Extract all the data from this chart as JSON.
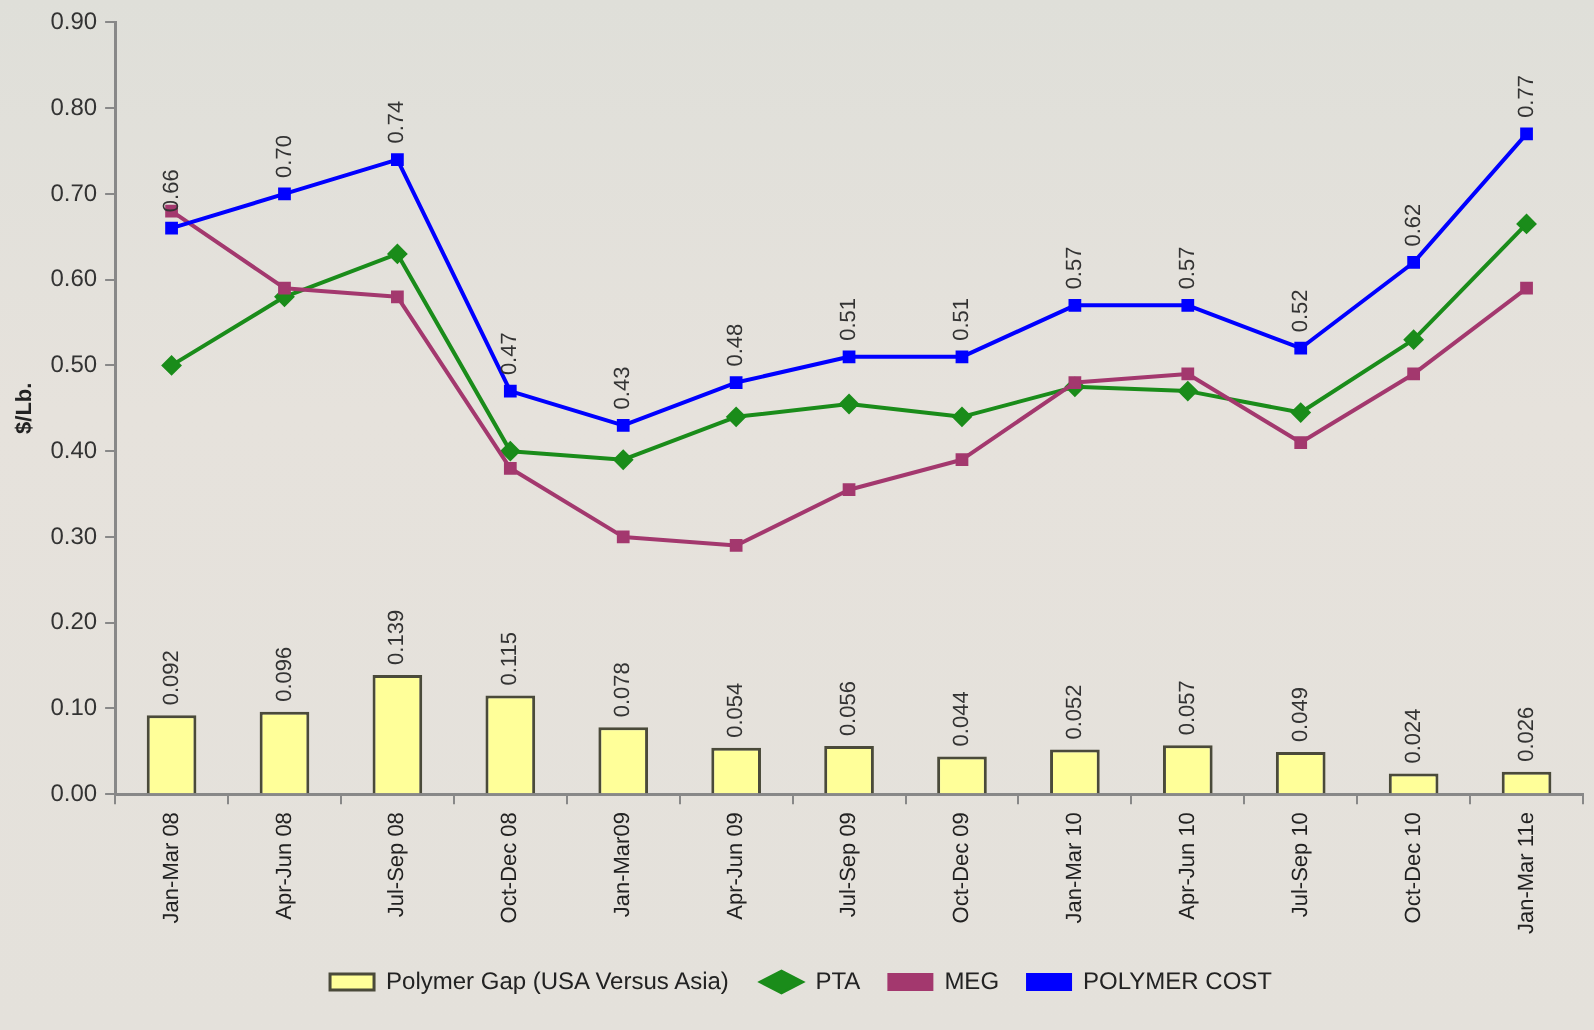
{
  "chart_data": {
    "type": "bar",
    "ylabel": "$/Lb.",
    "categories": [
      "Jan-Mar 08",
      "Apr-Jun 08",
      "Jul-Sep 08",
      "Oct-Dec 08",
      "Jan-Mar09",
      "Apr-Jun 09",
      "Jul-Sep 09",
      "Oct-Dec 09",
      "Jan-Mar 10",
      "Apr-Jun 10",
      "Jul-Sep 10",
      "Oct-Dec 10",
      "Jan-Mar 11e"
    ],
    "ylim": [
      0,
      0.9
    ],
    "yticks": [
      {
        "value": 0,
        "label": "0.00"
      },
      {
        "value": 0.1,
        "label": "0.10"
      },
      {
        "value": 0.2,
        "label": "0.20"
      },
      {
        "value": 0.3,
        "label": "0.30"
      },
      {
        "value": 0.4,
        "label": "0.40"
      },
      {
        "value": 0.5,
        "label": "0.50"
      },
      {
        "value": 0.6,
        "label": "0.60"
      },
      {
        "value": 0.7,
        "label": "0.70"
      },
      {
        "value": 0.8,
        "label": "0.80"
      },
      {
        "value": 0.9,
        "label": "0.90"
      }
    ],
    "grid": false,
    "legend": "bottom",
    "series": [
      {
        "name": "Polymer Gap (USA Versus Asia)",
        "color": "#ffff99",
        "values": [
          0.092,
          0.096,
          0.139,
          0.115,
          0.078,
          0.054,
          0.056,
          0.044,
          0.052,
          0.057,
          0.049,
          0.024,
          0.026
        ],
        "value_labels": [
          "0.092",
          "0.096",
          "0.139",
          "0.115",
          "0.078",
          "0.054",
          "0.056",
          "0.044",
          "0.052",
          "0.057",
          "0.049",
          "0.024",
          "0.026"
        ]
      },
      {
        "name": "PTA",
        "type": "line",
        "color": "#1a8c1a",
        "marker": "diamond",
        "values": [
          0.5,
          0.58,
          0.63,
          0.4,
          0.39,
          0.44,
          0.455,
          0.44,
          0.475,
          0.47,
          0.445,
          0.53,
          0.665
        ]
      },
      {
        "name": "MEG",
        "type": "line",
        "color": "#a3386e",
        "marker": "square",
        "values": [
          0.68,
          0.59,
          0.58,
          0.38,
          0.3,
          0.29,
          0.355,
          0.39,
          0.48,
          0.49,
          0.41,
          0.49,
          0.59
        ]
      },
      {
        "name": "POLYMER COST",
        "type": "line",
        "color": "#0000ff",
        "marker": "square",
        "values": [
          0.66,
          0.7,
          0.74,
          0.47,
          0.43,
          0.48,
          0.51,
          0.51,
          0.57,
          0.57,
          0.52,
          0.62,
          0.77
        ],
        "value_labels": [
          "0.66",
          "0.70",
          "0.74",
          "0.47",
          "0.43",
          "0.48",
          "0.51",
          "0.51",
          "0.57",
          "0.57",
          "0.52",
          "0.62",
          "0.77"
        ]
      }
    ]
  }
}
